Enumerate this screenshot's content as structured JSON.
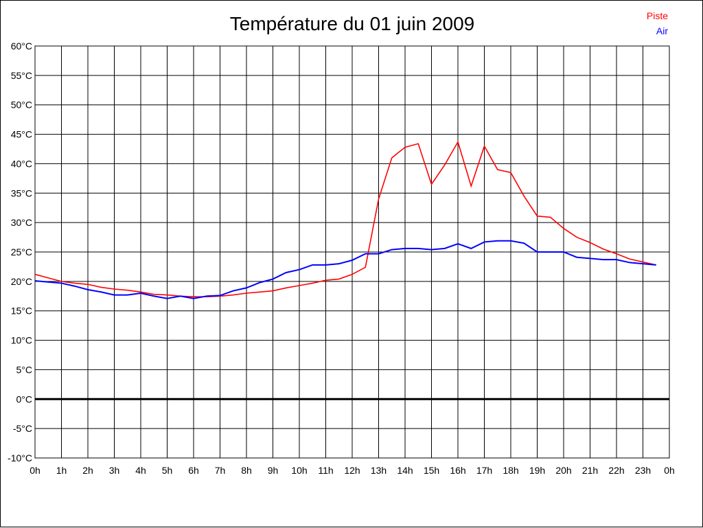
{
  "chart_data": {
    "type": "line",
    "title": "Température du 01 juin 2009",
    "x": [
      0,
      0.5,
      1,
      1.5,
      2,
      2.5,
      3,
      3.5,
      4,
      4.5,
      5,
      5.5,
      6,
      6.5,
      7,
      7.5,
      8,
      8.5,
      9,
      9.5,
      10,
      10.5,
      11,
      11.5,
      12,
      12.5,
      13,
      13.5,
      14,
      14.5,
      15,
      15.5,
      16,
      16.5,
      17,
      17.5,
      18,
      18.5,
      19,
      19.5,
      20,
      20.5,
      21,
      21.5,
      22,
      22.5,
      23,
      23.5
    ],
    "x_tick_labels": [
      "0h",
      "1h",
      "2h",
      "3h",
      "4h",
      "5h",
      "6h",
      "7h",
      "8h",
      "9h",
      "10h",
      "11h",
      "12h",
      "13h",
      "14h",
      "15h",
      "16h",
      "17h",
      "18h",
      "19h",
      "20h",
      "21h",
      "22h",
      "23h",
      "0h"
    ],
    "y_tick_labels": [
      "60°C",
      "55°C",
      "50°C",
      "45°C",
      "40°C",
      "35°C",
      "30°C",
      "25°C",
      "20°C",
      "15°C",
      "10°C",
      "5°C",
      "0°C",
      "-5°C",
      "-10°C"
    ],
    "xlim": [
      0,
      24
    ],
    "ylim": [
      -10,
      60
    ],
    "grid": true,
    "legend_placement": "top-right",
    "series": [
      {
        "name": "Piste",
        "color": "#ff0000",
        "values": [
          21.2,
          20.6,
          20.0,
          19.7,
          19.5,
          19.0,
          18.7,
          18.5,
          18.2,
          17.8,
          17.7,
          17.5,
          17.4,
          17.4,
          17.5,
          17.7,
          18.0,
          18.2,
          18.4,
          18.9,
          19.3,
          19.7,
          20.2,
          20.4,
          21.2,
          22.4,
          34.0,
          41.0,
          42.8,
          43.4,
          36.5,
          39.8,
          43.7,
          36.2,
          43.0,
          39.0,
          38.5,
          34.5,
          31.1,
          30.9,
          29.0,
          27.5,
          26.6,
          25.5,
          24.7,
          23.8,
          23.3,
          22.8
        ]
      },
      {
        "name": "Air",
        "color": "#0000ff",
        "values": [
          20.1,
          19.9,
          19.7,
          19.2,
          18.6,
          18.2,
          17.7,
          17.7,
          18.0,
          17.5,
          17.1,
          17.5,
          17.1,
          17.5,
          17.6,
          18.4,
          18.9,
          19.8,
          20.4,
          21.5,
          22.0,
          22.8,
          22.8,
          23.0,
          23.6,
          24.7,
          24.7,
          25.4,
          25.6,
          25.6,
          25.4,
          25.6,
          26.4,
          25.6,
          26.7,
          26.9,
          26.9,
          26.5,
          25.0,
          25.0,
          25.0,
          24.1,
          23.9,
          23.7,
          23.7,
          23.2,
          23.0,
          22.8
        ]
      }
    ]
  }
}
